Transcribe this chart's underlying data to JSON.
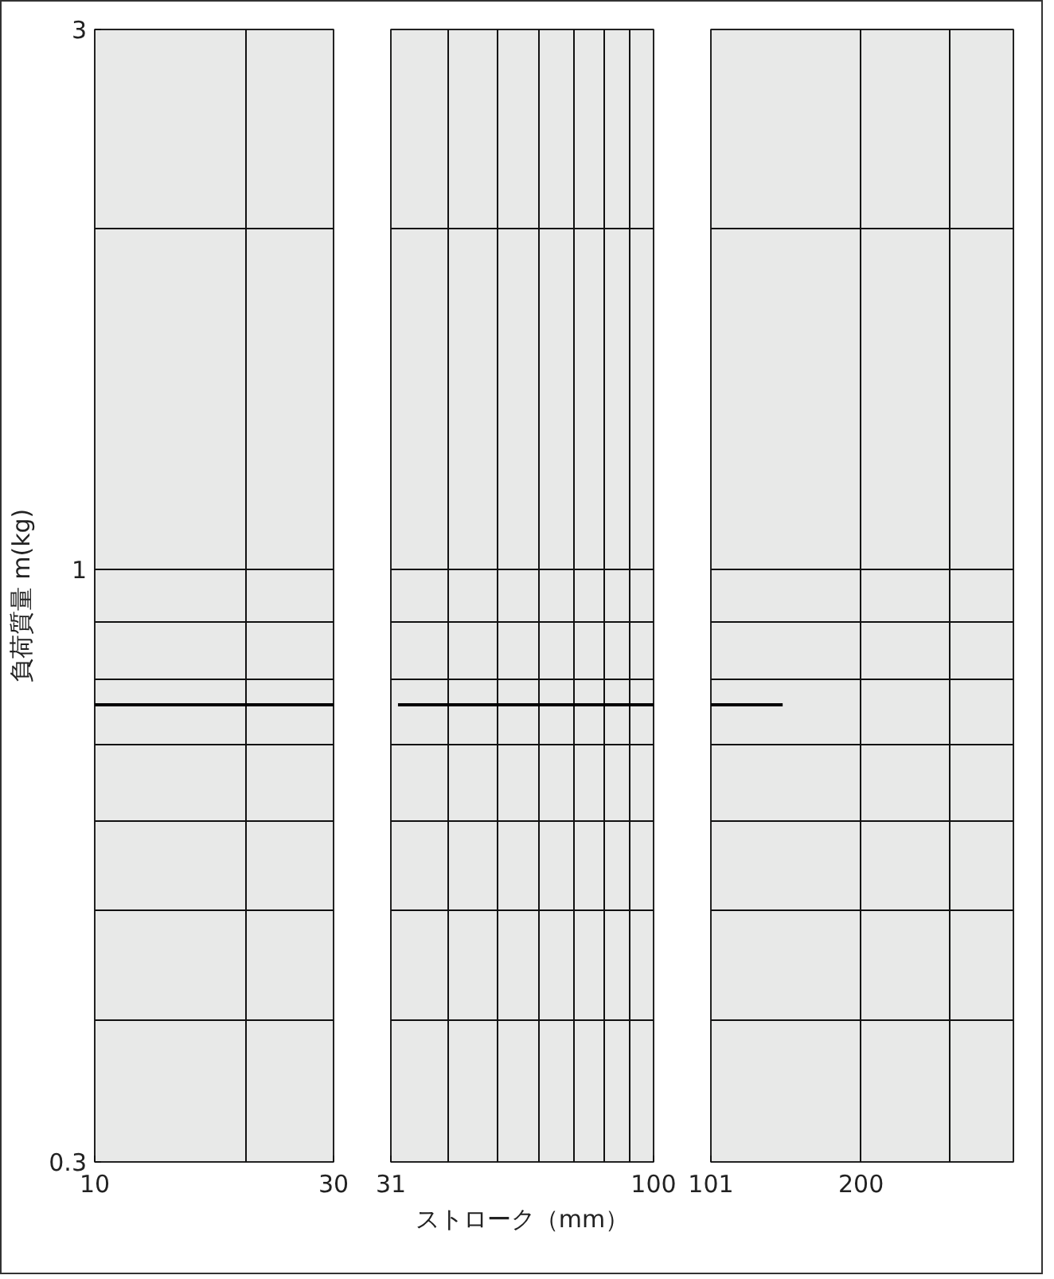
{
  "chart_data": [
    {
      "type": "line",
      "ylabel": "負荷質量 m(kg)",
      "log": "xy",
      "grid": true,
      "xlim": [
        10,
        30
      ],
      "xticks": [
        10,
        {
          "value": 20,
          "label": null
        },
        30
      ],
      "ylim": [
        0.3,
        3
      ],
      "yticks": [
        0.3,
        {
          "value": 0.4,
          "label": null
        },
        {
          "value": 0.5,
          "label": null
        },
        {
          "value": 0.6,
          "label": null
        },
        {
          "value": 0.7,
          "label": null
        },
        {
          "value": 0.8,
          "label": null
        },
        {
          "value": 0.9,
          "label": null
        },
        1,
        {
          "value": 2,
          "label": null
        },
        3
      ],
      "series": [
        {
          "color": "#000000",
          "x": [
            10,
            30
          ],
          "values": [
            0.76,
            0.76
          ]
        }
      ]
    },
    {
      "type": "line",
      "xlabel": "ストローク（mm）",
      "log": "xy",
      "grid": true,
      "tick_labels": "x",
      "xlim": [
        31,
        100
      ],
      "xticks": [
        31,
        {
          "value": 40,
          "label": null
        },
        {
          "value": 50,
          "label": null
        },
        {
          "value": 60,
          "label": null
        },
        {
          "value": 70,
          "label": null
        },
        {
          "value": 80,
          "label": null
        },
        {
          "value": 90,
          "label": null
        },
        100
      ],
      "ylim": [
        0.3,
        3
      ],
      "yticks": [
        0.3,
        {
          "value": 0.4,
          "label": null
        },
        {
          "value": 0.5,
          "label": null
        },
        {
          "value": 0.6,
          "label": null
        },
        {
          "value": 0.7,
          "label": null
        },
        {
          "value": 0.8,
          "label": null
        },
        {
          "value": 0.9,
          "label": null
        },
        1,
        {
          "value": 2,
          "label": null
        },
        3
      ],
      "series": [
        {
          "color": "#000000",
          "x": [
            32,
            100
          ],
          "values": [
            0.76,
            0.76
          ]
        }
      ]
    },
    {
      "type": "line",
      "log": "xy",
      "grid": true,
      "tick_labels": "x",
      "xlim": [
        101,
        400
      ],
      "xticks": [
        101,
        200,
        {
          "value": 300,
          "label": null
        }
      ],
      "ylim": [
        0.3,
        3
      ],
      "yticks": [
        0.3,
        {
          "value": 0.4,
          "label": null
        },
        {
          "value": 0.5,
          "label": null
        },
        {
          "value": 0.6,
          "label": null
        },
        {
          "value": 0.7,
          "label": null
        },
        {
          "value": 0.8,
          "label": null
        },
        {
          "value": 0.9,
          "label": null
        },
        1,
        {
          "value": 2,
          "label": null
        },
        3
      ],
      "series": [
        {
          "color": "#000000",
          "x": [
            101,
            140
          ],
          "values": [
            0.76,
            0.76
          ]
        }
      ]
    }
  ]
}
